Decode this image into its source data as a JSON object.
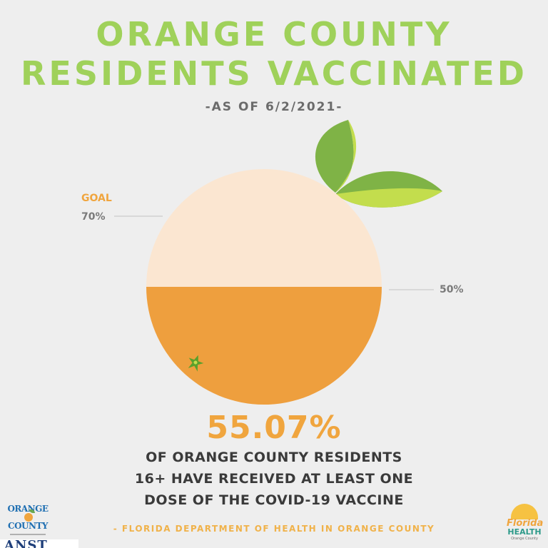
{
  "title_line_1": "ORANGE COUNTY",
  "title_line_2": "RESIDENTS VACCINATED",
  "as_of": "-AS OF 6/2/2021-",
  "goal": {
    "label": "GOAL",
    "value": "70%"
  },
  "marker_value": "50%",
  "percentage": "55.07%",
  "description": [
    "OF ORANGE COUNTY RESIDENTS",
    "16+ HAVE RECEIVED AT LEAST ONE",
    "DOSE OF THE COVID-19 VACCINE"
  ],
  "source": "- FLORIDA DEPARTMENT OF HEALTH IN ORANGE COUNTY",
  "fill_fraction": 0.5507,
  "colors": {
    "title": "#9fd15a",
    "accent": "#f0a53e",
    "orange_fill": "#ee9f3e",
    "orange_empty": "#fbe6d1",
    "leaf_dark": "#7fb346",
    "leaf_light": "#c3dd4d",
    "text_dark": "#3a3a3a",
    "text_gray": "#7a7a7a"
  },
  "logos": {
    "orange_county": {
      "line_1": "ORANGE",
      "line_2": "COUNTY"
    },
    "florida_health": {
      "line_1": "Florida",
      "line_2": "HEALTH",
      "line_3": "Orange County"
    }
  },
  "edge_text": "ANST"
}
